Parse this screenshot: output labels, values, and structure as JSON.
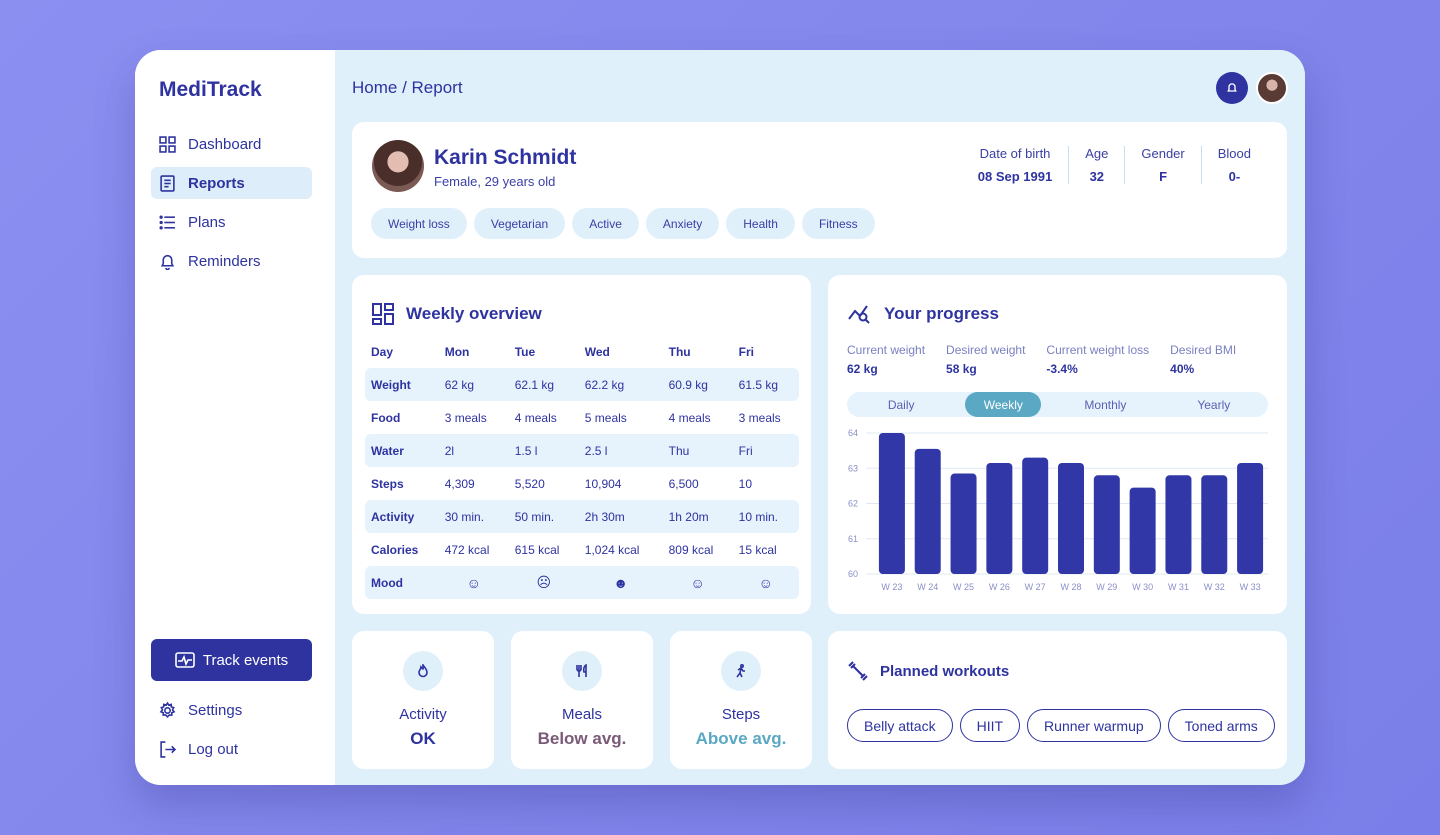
{
  "app": {
    "name": "MediTrack"
  },
  "sidebar": {
    "items": [
      {
        "label": "Dashboard",
        "icon": "grid-icon"
      },
      {
        "label": "Reports",
        "icon": "report-icon",
        "active": true
      },
      {
        "label": "Plans",
        "icon": "list-icon"
      },
      {
        "label": "Reminders",
        "icon": "bell-icon"
      }
    ],
    "track_label": "Track events",
    "bottom": [
      {
        "label": "Settings",
        "icon": "gear-icon"
      },
      {
        "label": "Log out",
        "icon": "logout-icon"
      }
    ]
  },
  "header": {
    "breadcrumb": "Home / Report"
  },
  "profile": {
    "name": "Karin Schmidt",
    "subtitle": "Female, 29 years old",
    "stats": [
      {
        "label": "Date of birth",
        "value": "08 Sep 1991"
      },
      {
        "label": "Age",
        "value": "32"
      },
      {
        "label": "Gender",
        "value": "F"
      },
      {
        "label": "Blood",
        "value": "0-"
      }
    ],
    "tags": [
      "Weight loss",
      "Vegetarian",
      "Active",
      "Anxiety",
      "Health",
      "Fitness"
    ]
  },
  "overview": {
    "title": "Weekly overview",
    "headers": [
      "Day",
      "Mon",
      "Tue",
      "Wed",
      "Thu",
      "Fri"
    ],
    "rows": [
      {
        "label": "Weight",
        "cells": [
          "62 kg",
          "62.1 kg",
          "62.2 kg",
          "60.9 kg",
          "61.5 kg"
        ]
      },
      {
        "label": "Food",
        "cells": [
          "3 meals",
          "4 meals",
          "5 meals",
          "4 meals",
          "3 meals"
        ]
      },
      {
        "label": "Water",
        "cells": [
          "2l",
          "1.5 l",
          "2.5 l",
          "Thu",
          "Fri"
        ]
      },
      {
        "label": "Steps",
        "cells": [
          "4,309",
          "5,520",
          "10,904",
          "6,500",
          "10"
        ]
      },
      {
        "label": "Activity",
        "cells": [
          "30 min.",
          "50 min.",
          "2h 30m",
          "1h 20m",
          "10 min."
        ]
      },
      {
        "label": "Calories",
        "cells": [
          "472 kcal",
          "615 kcal",
          "1,024 kcal",
          "809 kcal",
          "15 kcal"
        ]
      },
      {
        "label": "Mood",
        "cells": [
          "☺",
          "☹",
          "☻",
          "☺",
          "☺"
        ]
      }
    ]
  },
  "progress": {
    "title": "Your progress",
    "metrics": [
      {
        "label": "Current weight",
        "value": "62 kg"
      },
      {
        "label": "Desired weight",
        "value": "58 kg"
      },
      {
        "label": "Current weight loss",
        "value": "-3.4%"
      },
      {
        "label": "Desired BMI",
        "value": "40%"
      }
    ],
    "periods": [
      "Daily",
      "Weekly",
      "Monthly",
      "Yearly"
    ],
    "active_period": "Weekly"
  },
  "chart_data": {
    "type": "bar",
    "categories": [
      "W 23",
      "W 24",
      "W 25",
      "W 26",
      "W 27",
      "W 28",
      "W 29",
      "W 30",
      "W 31",
      "W 32",
      "W 33"
    ],
    "values": [
      64.0,
      63.55,
      62.85,
      63.15,
      63.3,
      63.15,
      62.8,
      62.45,
      62.8,
      62.8,
      63.15
    ],
    "ylim": [
      60,
      64
    ],
    "yticks": [
      "60",
      "61",
      "62",
      "63",
      "64"
    ],
    "title": "",
    "xlabel": "",
    "ylabel": "",
    "color": "#3137a6"
  },
  "summary": [
    {
      "label": "Activity",
      "value": "OK",
      "color": "#2e33a0",
      "icon": "activity-icon"
    },
    {
      "label": "Meals",
      "value": "Below avg.",
      "color": "#7a5a78",
      "icon": "meals-icon"
    },
    {
      "label": "Steps",
      "value": "Above avg.",
      "color": "#5aa8c4",
      "icon": "steps-icon"
    }
  ],
  "workouts": {
    "title": "Planned workouts",
    "items": [
      "Belly attack",
      "HIIT",
      "Runner warmup",
      "Toned arms"
    ]
  }
}
